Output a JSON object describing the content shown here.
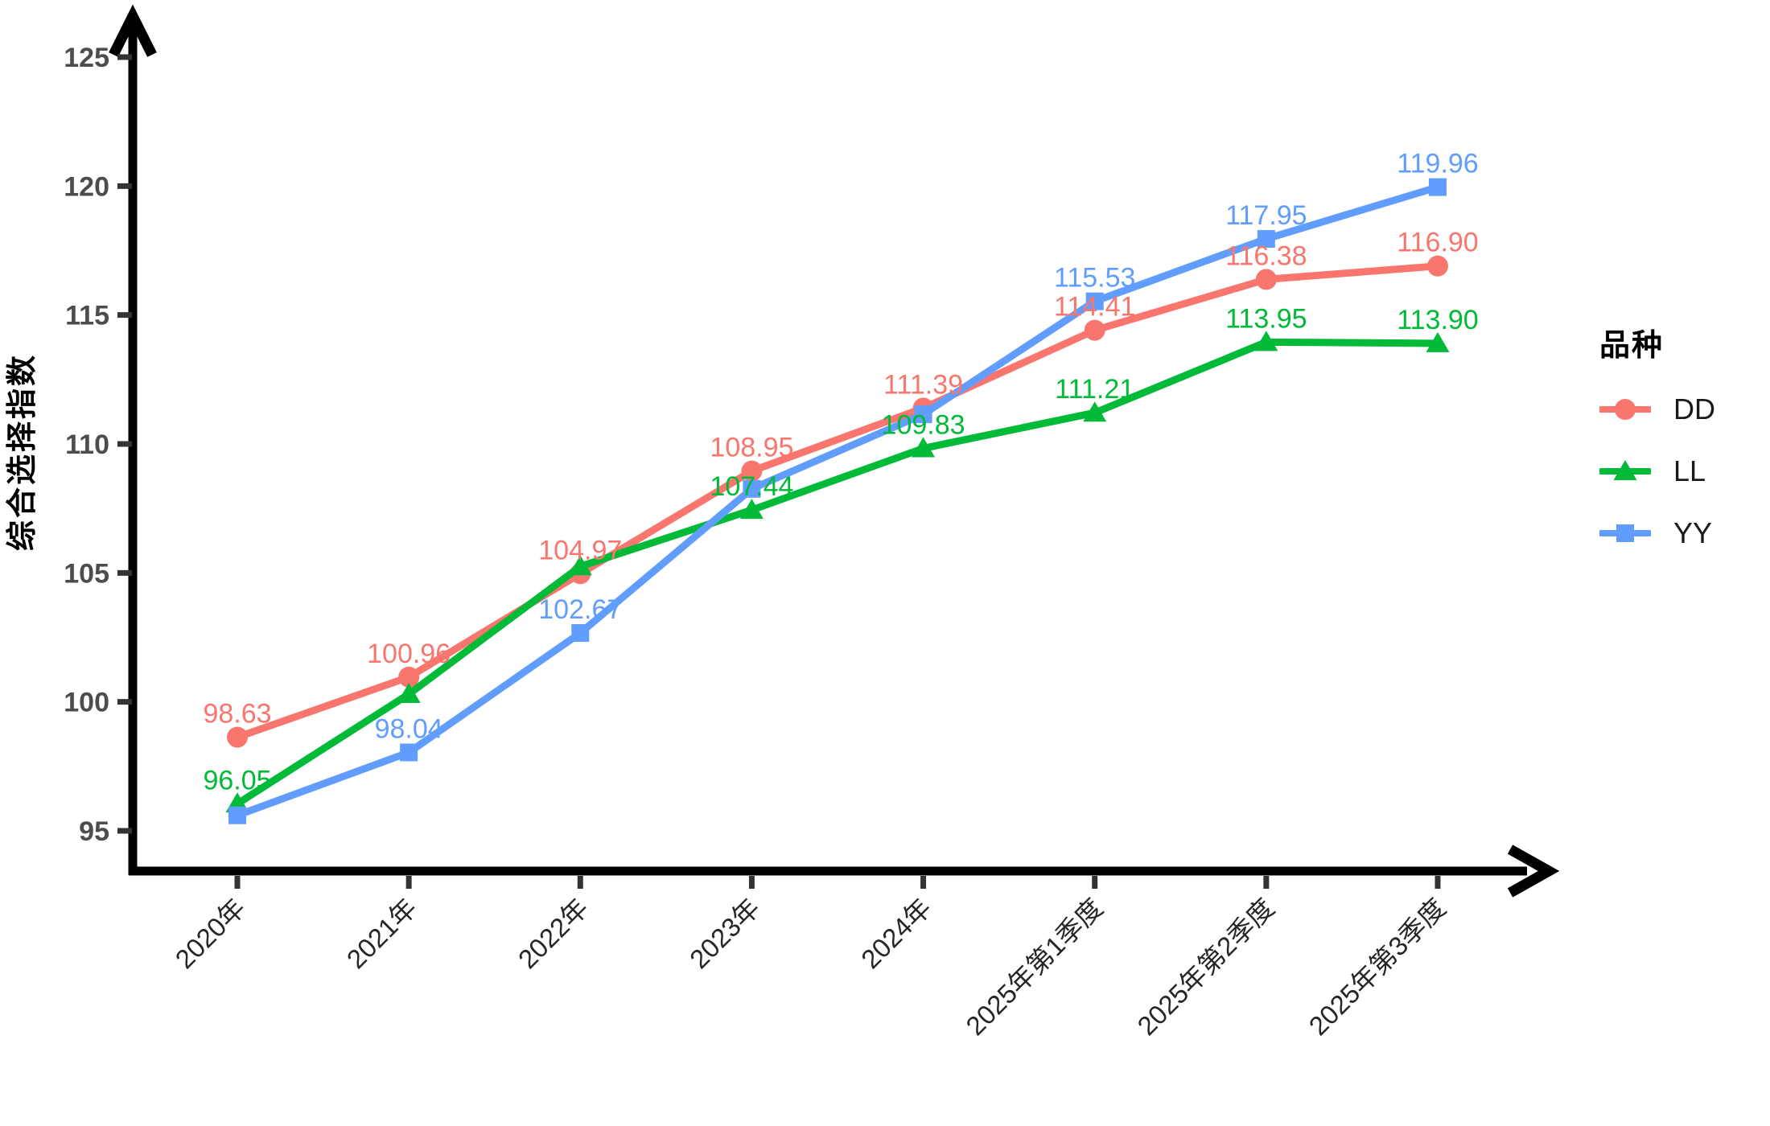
{
  "chart_data": {
    "type": "line",
    "title": "",
    "xlabel": "",
    "ylabel": "综合选择指数",
    "legend_title": "品种",
    "legend_position": "right",
    "grid": false,
    "categories": [
      "2020年",
      "2021年",
      "2022年",
      "2023年",
      "2024年",
      "2025年第1季度",
      "2025年第2季度",
      "2025年第3季度"
    ],
    "y_ticks": [
      95,
      100,
      105,
      110,
      115,
      120,
      125
    ],
    "ylim": [
      93.5,
      126.5
    ],
    "x_label_angle": 45,
    "series": [
      {
        "name": "DD",
        "color": "#F8766D",
        "marker": "circle",
        "values": [
          98.63,
          100.96,
          104.97,
          108.95,
          111.39,
          114.41,
          116.38,
          116.9
        ],
        "labels": [
          "98.63",
          "100.96",
          "104.97",
          "108.95",
          "111.39",
          "114.41",
          "116.38",
          "116.90"
        ]
      },
      {
        "name": "LL",
        "color": "#00BA38",
        "marker": "triangle",
        "values": [
          96.05,
          100.3,
          105.25,
          107.44,
          109.83,
          111.21,
          113.95,
          113.9
        ],
        "labels": [
          "96.05",
          null,
          null,
          "107.44",
          "109.83",
          "111.21",
          "113.95",
          "113.90"
        ]
      },
      {
        "name": "YY",
        "color": "#619CFF",
        "marker": "square",
        "values": [
          95.6,
          98.04,
          102.67,
          108.26,
          111.15,
          115.53,
          117.95,
          119.96
        ],
        "labels": [
          null,
          "98.04",
          "102.67",
          null,
          null,
          "115.53",
          "117.95",
          "119.96"
        ]
      }
    ],
    "style": {
      "axis_color": "#000000",
      "tick_mark_color": "#333333",
      "y_tick_text_color": "#4d4d4d",
      "x_tick_text_color": "#262626"
    }
  }
}
